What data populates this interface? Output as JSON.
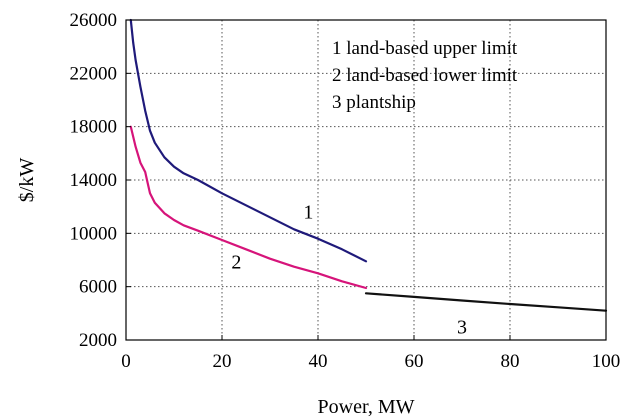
{
  "chart_data": {
    "type": "line",
    "title": "",
    "xlabel": "Power, MW",
    "ylabel": "$/kW",
    "xlim": [
      0,
      100
    ],
    "ylim": [
      2000,
      26000
    ],
    "xticks": [
      0,
      20,
      40,
      60,
      80,
      100
    ],
    "yticks": [
      2000,
      6000,
      10000,
      14000,
      18000,
      22000,
      26000
    ],
    "grid": true,
    "legend": {
      "placement": "top-right",
      "entries": [
        "1 land-based upper limit",
        "2 land-based lower limit",
        "3 plantship"
      ]
    },
    "series": [
      {
        "label": "1",
        "color": "#1f1a7a",
        "x": [
          1,
          1.5,
          2,
          3,
          4,
          5,
          6,
          8,
          10,
          12,
          15,
          20,
          25,
          30,
          35,
          40,
          45,
          50
        ],
        "y": [
          26000,
          24300,
          23000,
          21000,
          19200,
          17700,
          16800,
          15700,
          15000,
          14500,
          14000,
          13000,
          12100,
          11200,
          10300,
          9600,
          8800,
          7900
        ]
      },
      {
        "label": "2",
        "color": "#d6147a",
        "x": [
          1,
          2,
          3,
          4,
          4.5,
          5,
          6,
          8,
          10,
          12,
          15,
          20,
          25,
          30,
          35,
          40,
          45,
          50
        ],
        "y": [
          18000,
          16500,
          15300,
          14600,
          13800,
          13000,
          12300,
          11500,
          11000,
          10600,
          10200,
          9500,
          8800,
          8100,
          7500,
          7000,
          6400,
          5900
        ]
      },
      {
        "label": "3",
        "color": "#111111",
        "x": [
          50,
          60,
          70,
          80,
          90,
          100
        ],
        "y": [
          5500,
          5230,
          4960,
          4700,
          4450,
          4200
        ]
      }
    ],
    "annotations": [
      {
        "text": "1",
        "x": 38,
        "y": 11650
      },
      {
        "text": "2",
        "x": 23,
        "y": 7900
      },
      {
        "text": "3",
        "x": 70,
        "y": 3000
      }
    ]
  }
}
